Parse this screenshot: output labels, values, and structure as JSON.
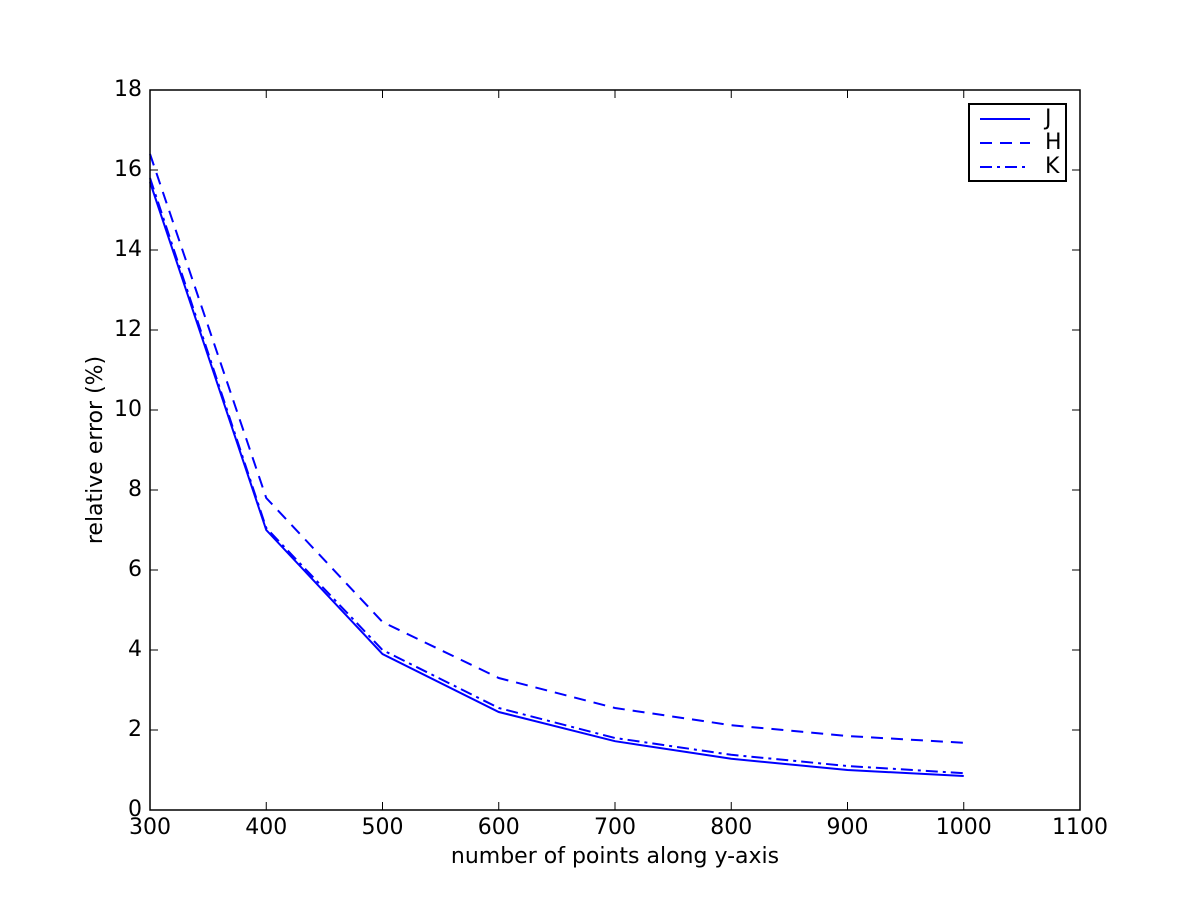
{
  "chart_data": {
    "type": "line",
    "x_label": "number of points along y-axis",
    "y_label": "relative error (%)",
    "x": [
      300,
      400,
      500,
      600,
      700,
      800,
      900,
      1000
    ],
    "series": [
      {
        "name": "J",
        "color": "#0000ff",
        "dash": "solid",
        "values": [
          15.7,
          7.0,
          3.9,
          2.45,
          1.72,
          1.28,
          1.0,
          0.85
        ]
      },
      {
        "name": "H",
        "color": "#0000ff",
        "dash": "dashed",
        "values": [
          16.4,
          7.8,
          4.7,
          3.3,
          2.55,
          2.12,
          1.85,
          1.68
        ]
      },
      {
        "name": "K",
        "color": "#0000ff",
        "dash": "dashdot",
        "values": [
          15.8,
          7.05,
          4.0,
          2.55,
          1.8,
          1.38,
          1.1,
          0.92
        ]
      }
    ],
    "xlim": [
      300,
      1100
    ],
    "xticks": [
      300,
      400,
      500,
      600,
      700,
      800,
      900,
      1000,
      1100
    ],
    "ylim": [
      0,
      18
    ],
    "yticks": [
      0,
      2,
      4,
      6,
      8,
      10,
      12,
      14,
      16,
      18
    ],
    "grid": false,
    "legend": "upper right"
  }
}
